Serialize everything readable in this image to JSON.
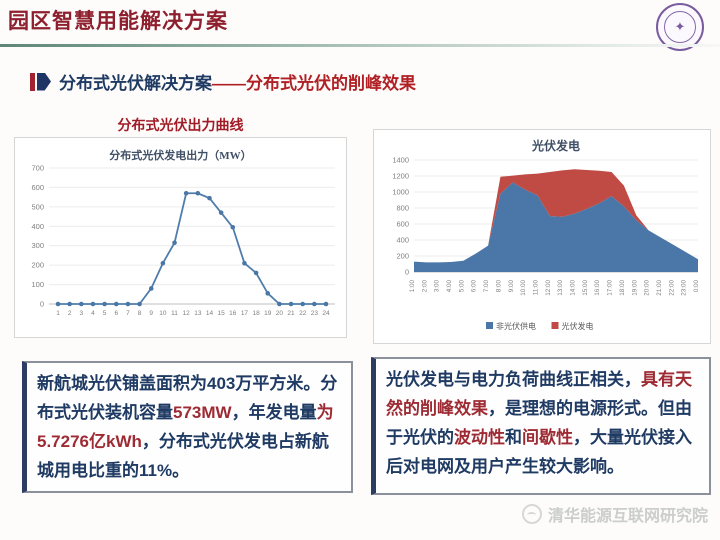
{
  "header": {
    "title": "园区智慧用能解决方案",
    "seal_icon": "tsinghua-university-seal",
    "seal_glyph": "✦"
  },
  "subtitle": {
    "segments": [
      {
        "text": "分布式光伏解决方案",
        "color": "navy"
      },
      {
        "text": "——分布式光伏的削峰效果",
        "color": "red"
      }
    ]
  },
  "left_panel": {
    "heading": "分布式光伏出力曲线"
  },
  "chart_data": [
    {
      "type": "line",
      "title": "分布式光伏发电出力（MW）",
      "x": [
        1,
        2,
        3,
        4,
        5,
        6,
        7,
        8,
        9,
        10,
        11,
        12,
        13,
        14,
        15,
        16,
        17,
        18,
        19,
        20,
        21,
        22,
        23,
        24
      ],
      "values": [
        0,
        0,
        0,
        0,
        0,
        0,
        0,
        0,
        80,
        210,
        315,
        570,
        570,
        545,
        470,
        395,
        210,
        160,
        55,
        0,
        0,
        0,
        0,
        0
      ],
      "ylim": [
        0,
        700
      ],
      "ytick_step": 100,
      "line_color": "#4f7dab",
      "marker_color": "#4a77a6",
      "grid": true,
      "legend_position": "none"
    },
    {
      "type": "area",
      "stacked": true,
      "title": "光伏发电",
      "categories": [
        "1:00",
        "2:00",
        "3:00",
        "4:00",
        "5:00",
        "6:00",
        "7:00",
        "8:00",
        "9:00",
        "10:00",
        "11:00",
        "12:00",
        "13:00",
        "14:00",
        "15:00",
        "16:00",
        "17:00",
        "18:00",
        "19:00",
        "20:00",
        "21:00",
        "22:00",
        "23:00",
        "0:00"
      ],
      "series": [
        {
          "name": "非光伏供电",
          "color": "#4a76a8",
          "values": [
            130,
            120,
            120,
            125,
            140,
            230,
            330,
            980,
            1120,
            1030,
            960,
            700,
            690,
            730,
            790,
            860,
            950,
            820,
            650,
            520,
            430,
            340,
            250,
            160
          ]
        },
        {
          "name": "光伏发电",
          "color": "#bf4b44",
          "values": [
            0,
            0,
            0,
            0,
            0,
            0,
            0,
            210,
            85,
            190,
            270,
            550,
            580,
            555,
            485,
            405,
            300,
            260,
            60,
            0,
            0,
            0,
            0,
            0
          ]
        }
      ],
      "ylim": [
        0,
        1400
      ],
      "ytick_step": 200,
      "grid": true,
      "legend_position": "bottom"
    }
  ],
  "info_left": {
    "segments": [
      {
        "text": "新航城光伏铺盖面积为403万平方米。分布式光伏装机容量",
        "color": "navy"
      },
      {
        "text": "573MW",
        "color": "red"
      },
      {
        "text": "，年发电量",
        "color": "navy"
      },
      {
        "text": "为5.7276亿kWh",
        "color": "red"
      },
      {
        "text": "，分布式光伏发电占新航城用电比重的11%。",
        "color": "navy"
      }
    ]
  },
  "info_right": {
    "segments": [
      {
        "text": "光伏发电与电力负荷曲线正相关，",
        "color": "navy"
      },
      {
        "text": "具有天然的削峰效果",
        "color": "red"
      },
      {
        "text": "，是理想的电源形式。但由于光伏的",
        "color": "navy"
      },
      {
        "text": "波动性",
        "color": "red"
      },
      {
        "text": "和",
        "color": "navy"
      },
      {
        "text": "间歇性",
        "color": "red"
      },
      {
        "text": "，大量光伏接入后对电网及用户产生较大影响。",
        "color": "navy"
      }
    ]
  },
  "footer": {
    "watermark": "清华能源互联网研究院",
    "watermark_icon": "tsinghua-eiri-logo"
  },
  "colors": {
    "title_red": "#8e1f2e",
    "body_navy": "#1f3a63",
    "emphasis_red": "#9e2b33",
    "area_blue": "#4a76a8",
    "area_red": "#bf4b44",
    "line_blue": "#4f7dab"
  }
}
